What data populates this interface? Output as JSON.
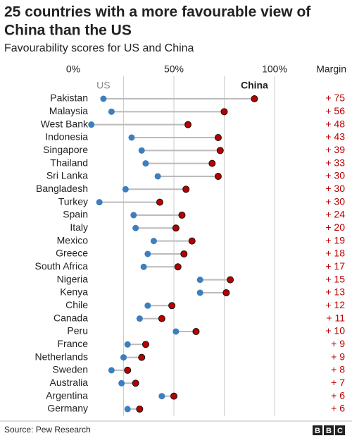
{
  "chart_data": {
    "type": "dumbbell",
    "title": "25 countries with a more favourable view of China than the US",
    "subtitle": "Favourability scores for US and China",
    "source": "Source: Pew Research",
    "logo": "BBC",
    "margin_header": "Margin",
    "categories": [
      "Pakistan",
      "Malaysia",
      "West Bank",
      "Indonesia",
      "Singapore",
      "Thailand",
      "Sri Lanka",
      "Bangladesh",
      "Turkey",
      "Spain",
      "Italy",
      "Mexico",
      "Greece",
      "South Africa",
      "Nigeria",
      "Kenya",
      "Chile",
      "Canada",
      "Peru",
      "France",
      "Netherlands",
      "Sweden",
      "Australia",
      "Argentina",
      "Germany"
    ],
    "series": [
      {
        "name": "US",
        "color": "#3d7ebf",
        "values": [
          15,
          19,
          9,
          29,
          34,
          36,
          42,
          26,
          13,
          30,
          31,
          40,
          37,
          35,
          63,
          63,
          37,
          33,
          51,
          27,
          25,
          19,
          24,
          44,
          27
        ]
      },
      {
        "name": "China",
        "color": "#b80000",
        "values": [
          90,
          75,
          57,
          72,
          73,
          69,
          72,
          56,
          43,
          54,
          51,
          59,
          55,
          52,
          78,
          76,
          49,
          44,
          61,
          36,
          34,
          27,
          31,
          50,
          33
        ]
      }
    ],
    "margin_labels": [
      "+ 75",
      "+ 56",
      "+ 48",
      "+ 43",
      "+ 39",
      "+ 33",
      "+ 30",
      "+ 30",
      "+ 30",
      "+ 24",
      "+ 20",
      "+ 19",
      "+ 18",
      "+ 17",
      "+ 15",
      "+ 13",
      "+ 12",
      "+ 11",
      "+ 10",
      "+ 9",
      "+ 9",
      "+ 8",
      "+ 7",
      "+ 6",
      "+ 6"
    ],
    "xlim": [
      0,
      100
    ],
    "xticks": [
      {
        "value": 0,
        "label": "0%"
      },
      {
        "value": 50,
        "label": "50%"
      },
      {
        "value": 100,
        "label": "100%"
      }
    ],
    "grid_lines": [
      25,
      50,
      75,
      100
    ],
    "connector_color": "#bbbbbb"
  }
}
